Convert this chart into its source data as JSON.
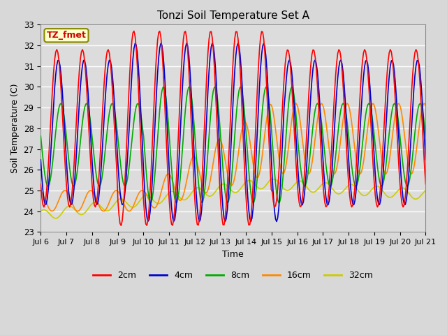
{
  "title": "Tonzi Soil Temperature Set A",
  "xlabel": "Time",
  "ylabel": "Soil Temperature (C)",
  "annotation": "TZ_fmet",
  "ylim": [
    23.0,
    33.0
  ],
  "yticks": [
    23.0,
    24.0,
    25.0,
    26.0,
    27.0,
    28.0,
    29.0,
    30.0,
    31.0,
    32.0,
    33.0
  ],
  "xtick_labels": [
    "Jul 6",
    "Jul 7",
    "Jul 8",
    "Jul 9",
    "Jul 10",
    "Jul 11",
    "Jul 12",
    "Jul 13",
    "Jul 14",
    "Jul 15",
    "Jul 16",
    "Jul 17",
    "Jul 18",
    "Jul 19",
    "Jul 20",
    "Jul 21"
  ],
  "series": {
    "2cm": {
      "color": "#ff0000",
      "linewidth": 1.2
    },
    "4cm": {
      "color": "#0000cc",
      "linewidth": 1.2
    },
    "8cm": {
      "color": "#00aa00",
      "linewidth": 1.2
    },
    "16cm": {
      "color": "#ff8800",
      "linewidth": 1.2
    },
    "32cm": {
      "color": "#cccc00",
      "linewidth": 1.2
    }
  },
  "fig_bg_color": "#d8d8d8",
  "plot_bg_color": "#dcdcdc",
  "legend_ncol": 5
}
